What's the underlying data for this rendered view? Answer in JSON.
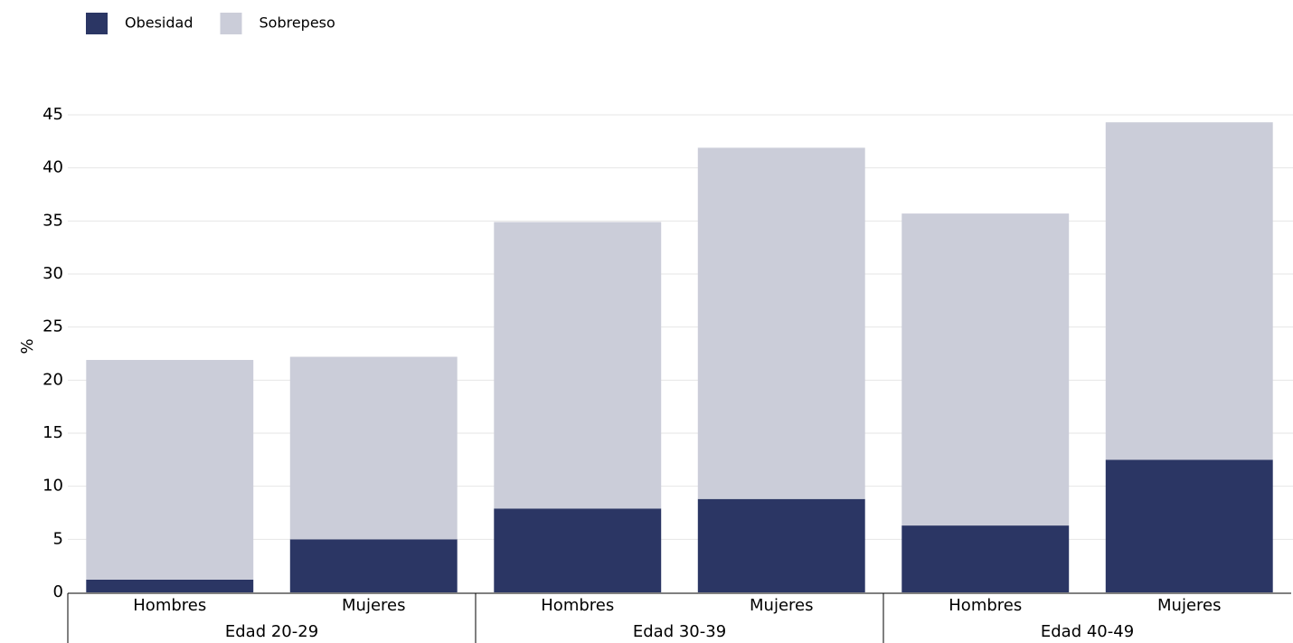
{
  "chart_data": {
    "type": "bar",
    "stacked": true,
    "ylabel": "%",
    "ylim": [
      0,
      45
    ],
    "yticks": [
      0,
      5,
      10,
      15,
      20,
      25,
      30,
      35,
      40,
      45
    ],
    "grid": true,
    "legend_position": "top-left",
    "groups": [
      {
        "label": "Edad 20-29",
        "categories": [
          "Hombres",
          "Mujeres"
        ]
      },
      {
        "label": "Edad 30-39",
        "categories": [
          "Hombres",
          "Mujeres"
        ]
      },
      {
        "label": "Edad 40-49",
        "categories": [
          "Hombres",
          "Mujeres"
        ]
      }
    ],
    "series": [
      {
        "name": "Obesidad",
        "color": "#2b3664",
        "values": [
          1.2,
          5.0,
          7.9,
          8.8,
          6.3,
          12.5
        ]
      },
      {
        "name": "Sobrepeso",
        "color": "#cbcdd9",
        "values": [
          20.7,
          17.2,
          27.0,
          33.1,
          29.4,
          31.8
        ]
      }
    ]
  }
}
